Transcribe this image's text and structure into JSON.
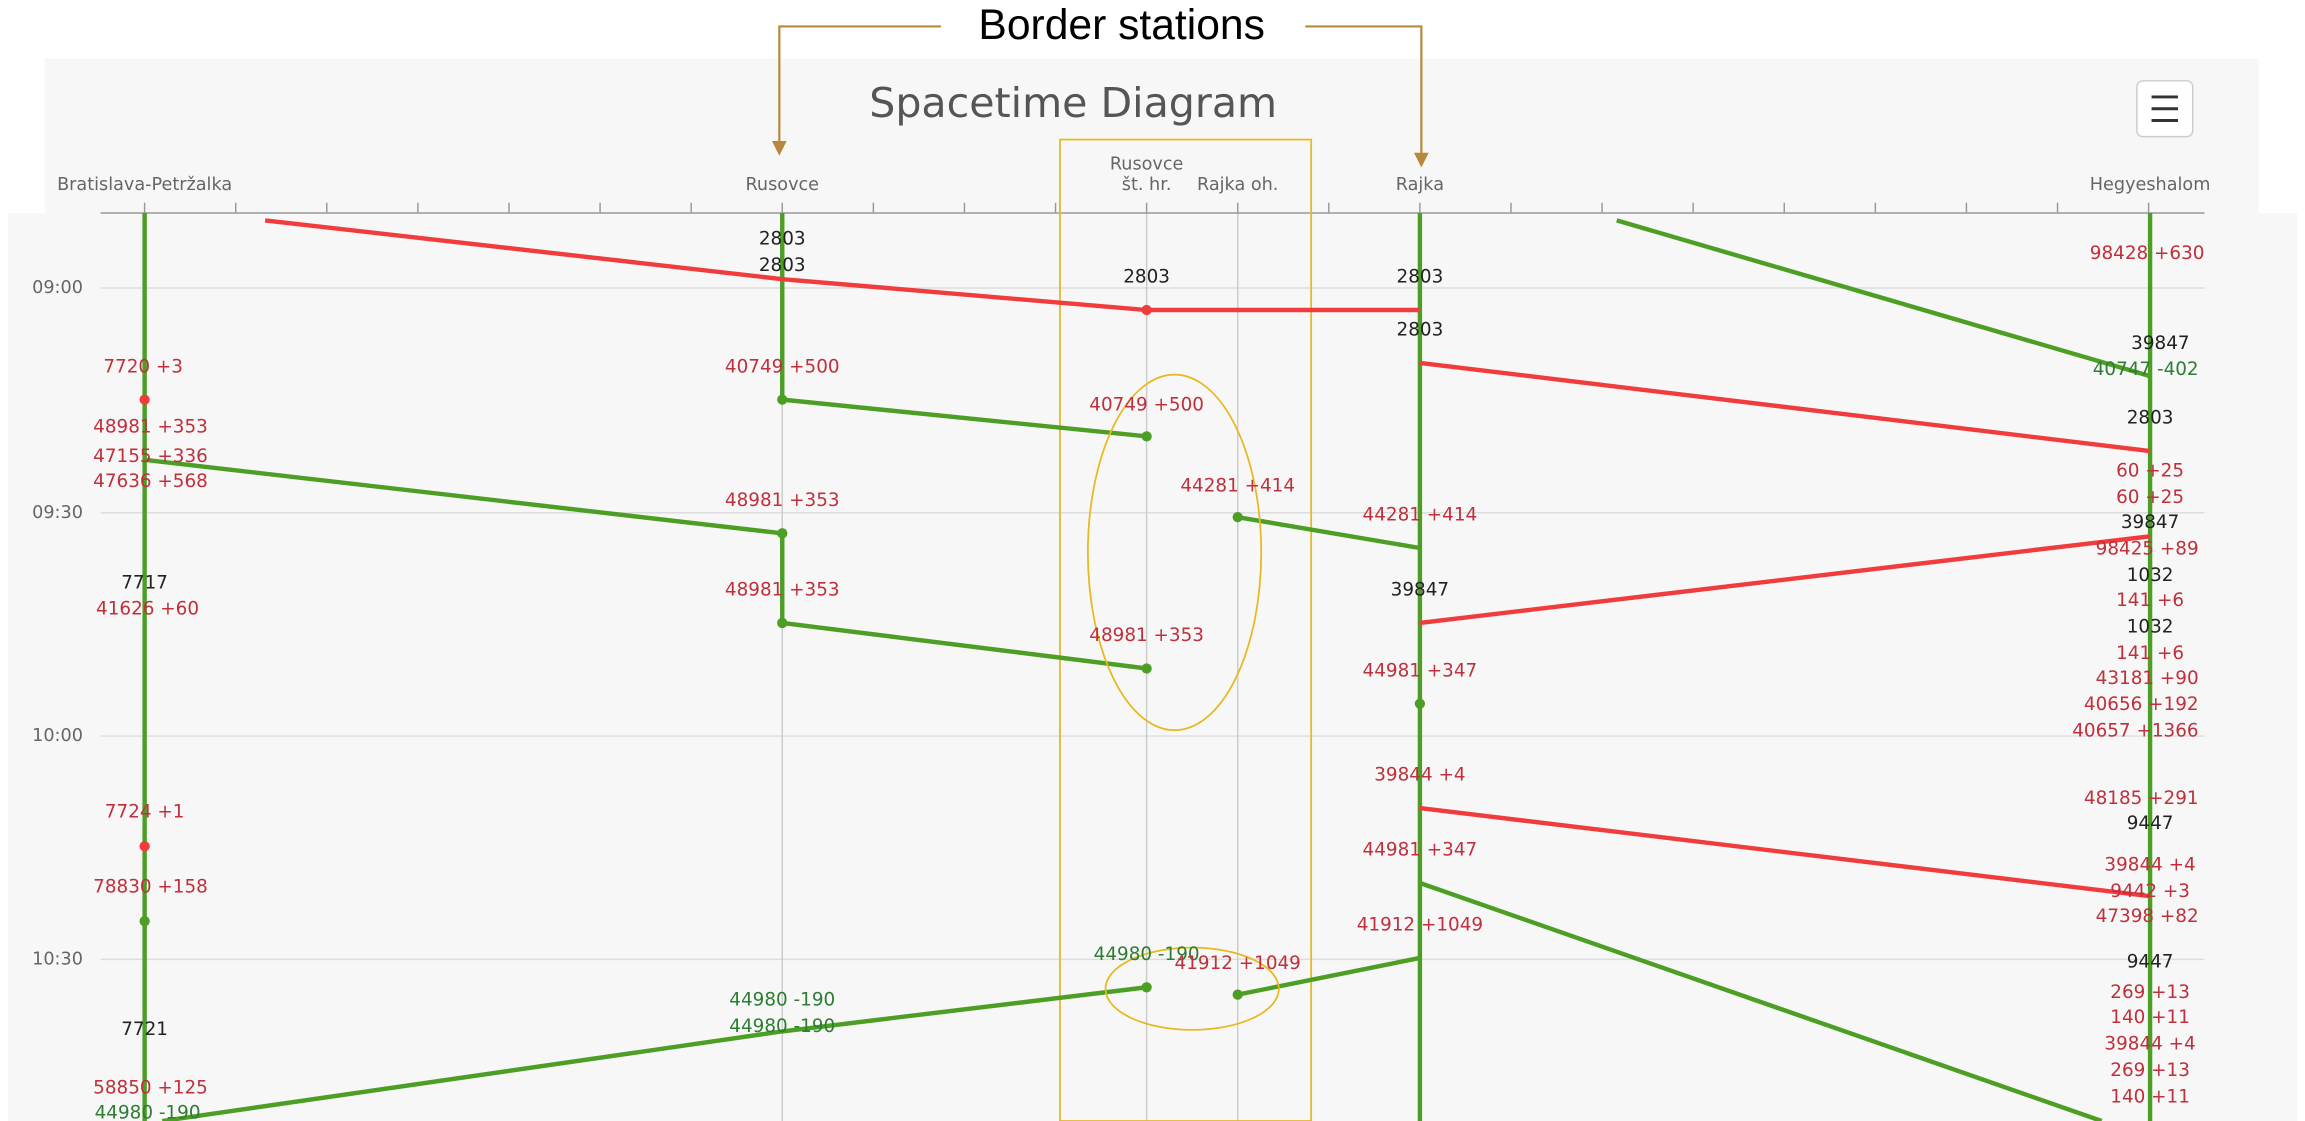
{
  "annotation": "Border stations",
  "title": "Spacetime Diagram",
  "stations": [
    "Bratislava-Petržalka",
    "Rusovce",
    [
      "Rusovce",
      "št. hr."
    ],
    "Rajka oh.",
    "Rajka",
    "Hegyeshalom"
  ],
  "times": [
    "09:00",
    "09:30",
    "10:00",
    "10:30"
  ],
  "train_labels": [
    "7720 +3",
    "48981 +353",
    "47155 +336",
    "47636 +568",
    "7717",
    "41626 +60",
    "7724 +1",
    "78830 +158",
    "7721",
    "58850 +125",
    "44980 -190",
    "2803",
    "2803",
    "40749 +500",
    "48981 +353",
    "48981 +353",
    "44980 -190",
    "44980 -190",
    "2803",
    "40749 +500",
    "48981 +353",
    "44980 -190",
    "44281 +414",
    "41912 +1049",
    "2803",
    "2803",
    "44281 +414",
    "39847",
    "44981 +347",
    "39844 +4",
    "44981 +347",
    "41912 +1049",
    "98428 +630",
    "39847",
    "40747 -402",
    "2803",
    "60 +25",
    "60 +25",
    "39847",
    "98425 +89",
    "1032",
    "141 +6",
    "1032",
    "141 +6",
    "43181 +90",
    "40656 +192",
    "40657 +1366",
    "48185 +291",
    "9447",
    "39844 +4",
    "9442 +3",
    "47398 +82",
    "9447",
    "269 +13",
    "140 +11",
    "39844 +4",
    "269 +13",
    "140 +11"
  ]
}
